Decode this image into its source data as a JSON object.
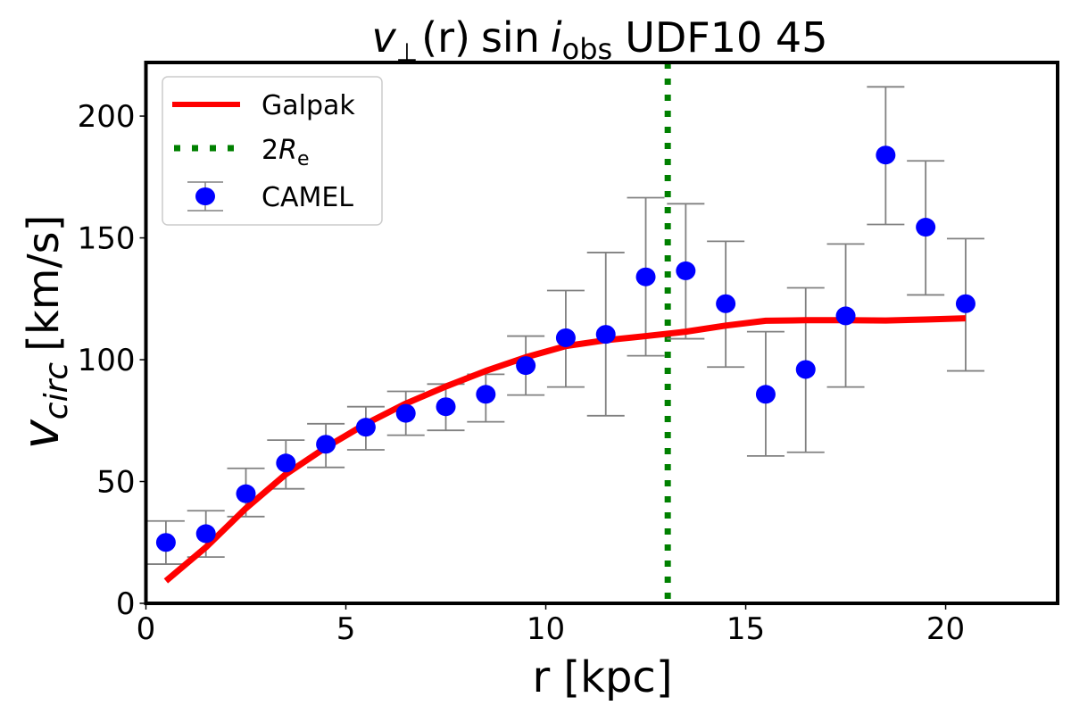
{
  "chart_data": {
    "type": "scatter",
    "title": {
      "v": "v",
      "perp": "⊥",
      "r": "(r)",
      "sin": "sin",
      "i": "i",
      "obs": "obs",
      "rest": "UDF10 45"
    },
    "xlabel": "r [kpc]",
    "ylabel": {
      "v": "v",
      "sub": "circ",
      "unit": "[km/s]"
    },
    "xlim": [
      0,
      22.8
    ],
    "ylim": [
      0,
      222
    ],
    "xticks": [
      0,
      5,
      10,
      15,
      20
    ],
    "yticks": [
      0,
      50,
      100,
      150,
      200
    ],
    "grid": false,
    "legend_placement": "top-left",
    "colors": {
      "galpak": "#ff0000",
      "re": "#008000",
      "camel": "#0000ff",
      "errorbar": "#808080"
    },
    "series": [
      {
        "name": "Galpak",
        "kind": "line",
        "x": [
          0.5,
          1.5,
          2.5,
          3.5,
          4.5,
          5.5,
          6.5,
          7.5,
          8.5,
          9.5,
          10.5,
          11.5,
          12.5,
          13.5,
          14.5,
          15.5,
          16.5,
          17.5,
          18.5,
          19.5,
          20.5
        ],
        "y": [
          9.2,
          23,
          39,
          53,
          64,
          73.7,
          82,
          89,
          95.4,
          101,
          105.6,
          108,
          109.7,
          111.5,
          114,
          116,
          116.2,
          116.2,
          116.1,
          116.5,
          117
        ]
      },
      {
        "name": "2R_e",
        "label_main": "2",
        "label_italic": "R",
        "label_sub": "e",
        "kind": "vline",
        "x": 13.05
      },
      {
        "name": "CAMEL",
        "kind": "errorbar",
        "x": [
          0.5,
          1.5,
          2.5,
          3.5,
          4.5,
          5.5,
          6.5,
          7.5,
          8.5,
          9.5,
          10.5,
          11.5,
          12.5,
          13.5,
          14.5,
          15.5,
          16.5,
          17.5,
          18.5,
          19.5,
          20.5
        ],
        "y": [
          25,
          28.6,
          45,
          57.6,
          65.3,
          72.3,
          78,
          80.7,
          85.8,
          97.6,
          109,
          110.4,
          134,
          136.5,
          123,
          85.8,
          96,
          118,
          184,
          154.4,
          123
        ],
        "y_low": [
          16.1,
          19,
          35.6,
          47,
          55.8,
          63,
          69,
          71,
          74.5,
          85.5,
          88.8,
          77,
          101.6,
          108.6,
          97,
          60.5,
          62,
          88.8,
          155.5,
          126.6,
          95.4
        ],
        "y_high": [
          33.8,
          38,
          55.4,
          67,
          73.7,
          80.7,
          87,
          90,
          94,
          109.7,
          128.4,
          144,
          166.5,
          164,
          148.6,
          111.5,
          129.5,
          147.5,
          212,
          181.6,
          149.7
        ]
      }
    ]
  }
}
